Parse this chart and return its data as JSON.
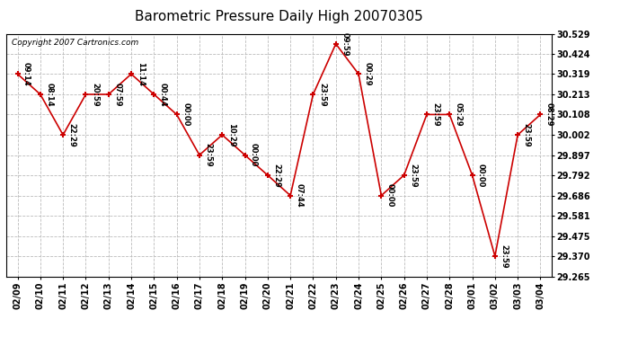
{
  "title": "Barometric Pressure Daily High 20070305",
  "copyright": "Copyright 2007 Cartronics.com",
  "x_labels": [
    "02/09",
    "02/10",
    "02/11",
    "02/12",
    "02/13",
    "02/14",
    "02/15",
    "02/16",
    "02/17",
    "02/18",
    "02/19",
    "02/20",
    "02/21",
    "02/22",
    "02/23",
    "02/24",
    "02/25",
    "02/26",
    "02/27",
    "02/28",
    "03/01",
    "03/02",
    "03/03",
    "03/04"
  ],
  "y_values": [
    30.319,
    30.213,
    30.002,
    30.213,
    30.213,
    30.319,
    30.213,
    30.108,
    29.897,
    30.002,
    29.897,
    29.792,
    29.686,
    30.213,
    30.476,
    30.319,
    29.686,
    29.792,
    30.108,
    30.108,
    29.792,
    29.37,
    30.002,
    30.108
  ],
  "annotations": [
    "09:14",
    "08:14",
    "22:29",
    "20:59",
    "07:59",
    "11:14",
    "00:44",
    "00:00",
    "23:59",
    "10:29",
    "00:00",
    "22:29",
    "07:44",
    "23:59",
    "09:59",
    "00:29",
    "00:00",
    "23:59",
    "23:59",
    "05:29",
    "00:00",
    "23:59",
    "23:59",
    "08:29"
  ],
  "line_color": "#cc0000",
  "marker_color": "#cc0000",
  "bg_color": "#ffffff",
  "grid_color": "#bbbbbb",
  "ylim": [
    29.265,
    30.529
  ],
  "yticks": [
    29.265,
    29.37,
    29.475,
    29.581,
    29.686,
    29.792,
    29.897,
    30.002,
    30.108,
    30.213,
    30.319,
    30.424,
    30.529
  ],
  "figsize": [
    6.9,
    3.75
  ],
  "dpi": 100
}
